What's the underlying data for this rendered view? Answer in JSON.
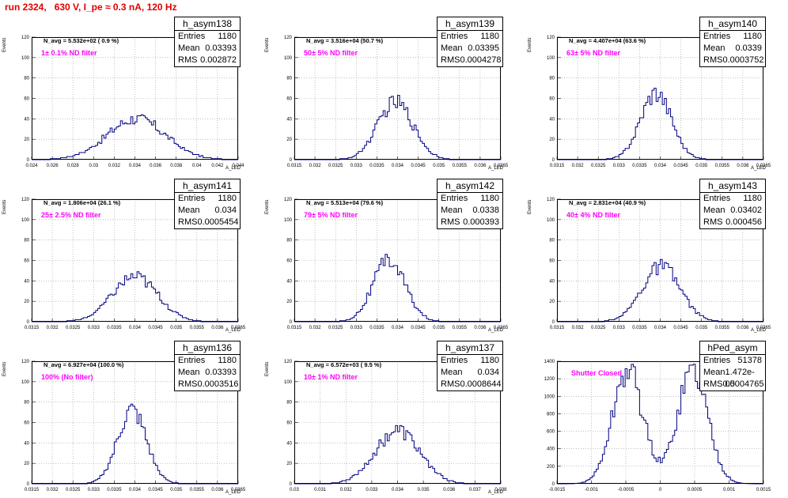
{
  "title": "run 2324,   630 V, I_pe ≈ 0.3 nA, 120 Hz",
  "stat_labels": {
    "entries": "Entries",
    "mean": "Mean",
    "rms": "RMS"
  },
  "chart_data": [
    {
      "type": "bar",
      "name": "h_asym138",
      "entries": "1180",
      "mean": "0.03393",
      "rms": "0.002872",
      "navg": "N_avg = 5.532e+02 ( 0.9 %)",
      "filter": "1± 0.1% ND filter",
      "ylabel": "Events",
      "xlabel": "A_LED",
      "xlim": [
        0.0235,
        0.044
      ],
      "ylim": [
        0,
        120
      ],
      "yticks": [
        "0",
        "20",
        "40",
        "60",
        "80",
        "100",
        "120"
      ],
      "xticks": [
        "0.024",
        "0.026",
        "0.028",
        "0.03",
        "0.032",
        "0.034",
        "0.036",
        "0.038",
        "0.04",
        "0.042",
        "0.044"
      ],
      "mu": 0.0339,
      "sigma": 0.0029,
      "peak": 40
    },
    {
      "type": "bar",
      "name": "h_asym139",
      "entries": "1180",
      "mean": "0.03395",
      "rms": "0.0004278",
      "navg": "N_avg = 3.516e+04 (50.7 %)",
      "filter": "50± 5% ND filter",
      "ylabel": "Events",
      "xlabel": "A_LED",
      "xlim": [
        0.0315,
        0.0365
      ],
      "ylim": [
        0,
        120
      ],
      "yticks": [
        "0",
        "20",
        "40",
        "60",
        "80",
        "100",
        "120"
      ],
      "xticks": [
        "0.0315",
        "0.032",
        "0.0325",
        "0.033",
        "0.0335",
        "0.034",
        "0.0345",
        "0.035",
        "0.0355",
        "0.036",
        "0.0365"
      ],
      "mu": 0.03395,
      "sigma": 0.00043,
      "peak": 56
    },
    {
      "type": "bar",
      "name": "h_asym140",
      "entries": "1180",
      "mean": "0.0339",
      "rms": "0.0003752",
      "navg": "N_avg = 4.407e+04 (63.6 %)",
      "filter": "63± 5% ND filter",
      "ylabel": "Events",
      "xlabel": "A_LED",
      "xlim": [
        0.0315,
        0.0365
      ],
      "ylim": [
        0,
        120
      ],
      "yticks": [
        "0",
        "20",
        "40",
        "60",
        "80",
        "100",
        "120"
      ],
      "xticks": [
        "0.0315",
        "0.032",
        "0.0325",
        "0.033",
        "0.0335",
        "0.034",
        "0.0345",
        "0.035",
        "0.0355",
        "0.036",
        "0.0365"
      ],
      "mu": 0.0339,
      "sigma": 0.000375,
      "peak": 66
    },
    {
      "type": "bar",
      "name": "h_asym141",
      "entries": "1180",
      "mean": "0.034",
      "rms": "0.0005454",
      "navg": "N_avg = 1.806e+04 (26.1 %)",
      "filter": "25± 2.5% ND filter",
      "ylabel": "Events",
      "xlabel": "A_LED",
      "xlim": [
        0.0315,
        0.0365
      ],
      "ylim": [
        0,
        120
      ],
      "yticks": [
        "0",
        "20",
        "40",
        "60",
        "80",
        "100",
        "120"
      ],
      "xticks": [
        "0.0315",
        "0.032",
        "0.0325",
        "0.033",
        "0.0335",
        "0.034",
        "0.0345",
        "0.035",
        "0.0355",
        "0.036",
        "0.0365"
      ],
      "mu": 0.034,
      "sigma": 0.00055,
      "peak": 44
    },
    {
      "type": "bar",
      "name": "h_asym142",
      "entries": "1180",
      "mean": "0.0338",
      "rms": "0.000393",
      "navg": "N_avg = 5.513e+04 (79.6 %)",
      "filter": "79± 5% ND filter",
      "ylabel": "Events",
      "xlabel": "A_LED",
      "xlim": [
        0.0315,
        0.0365
      ],
      "ylim": [
        0,
        120
      ],
      "yticks": [
        "0",
        "20",
        "40",
        "60",
        "80",
        "100",
        "120"
      ],
      "xticks": [
        "0.0315",
        "0.032",
        "0.0325",
        "0.033",
        "0.0335",
        "0.034",
        "0.0345",
        "0.035",
        "0.0355",
        "0.036",
        "0.0365"
      ],
      "mu": 0.0338,
      "sigma": 0.00039,
      "peak": 60
    },
    {
      "type": "bar",
      "name": "h_asym143",
      "entries": "1180",
      "mean": "0.03402",
      "rms": "0.000456",
      "navg": "N_avg = 2.831e+04 (40.9 %)",
      "filter": "40± 4% ND filter",
      "ylabel": "Events",
      "xlabel": "A_LED",
      "xlim": [
        0.0315,
        0.0365
      ],
      "ylim": [
        0,
        120
      ],
      "yticks": [
        "0",
        "20",
        "40",
        "60",
        "80",
        "100",
        "120"
      ],
      "xticks": [
        "0.0315",
        "0.032",
        "0.0325",
        "0.033",
        "0.0335",
        "0.034",
        "0.0345",
        "0.035",
        "0.0355",
        "0.036",
        "0.0365"
      ],
      "mu": 0.03402,
      "sigma": 0.00046,
      "peak": 54
    },
    {
      "type": "bar",
      "name": "h_asym136",
      "entries": "1180",
      "mean": "0.03393",
      "rms": "0.0003516",
      "navg": "N_avg = 6.927e+04 (100.0 %)",
      "filter": "100% (No filter)",
      "ylabel": "Events",
      "xlabel": "A_LED",
      "xlim": [
        0.0315,
        0.0365
      ],
      "ylim": [
        0,
        120
      ],
      "yticks": [
        "0",
        "20",
        "40",
        "60",
        "80",
        "100",
        "120"
      ],
      "xticks": [
        "0.0315",
        "0.032",
        "0.0325",
        "0.033",
        "0.0335",
        "0.034",
        "0.0345",
        "0.035",
        "0.0355",
        "0.036",
        "0.0365"
      ],
      "mu": 0.03393,
      "sigma": 0.00035,
      "peak": 72
    },
    {
      "type": "bar",
      "name": "h_asym137",
      "entries": "1180",
      "mean": "0.034",
      "rms": "0.0008644",
      "navg": "N_avg = 6.572e+03 ( 9.5 %)",
      "filter": "10± 1% ND filter",
      "ylabel": "Events",
      "xlabel": "A_LED",
      "xlim": [
        0.03,
        0.038
      ],
      "ylim": [
        0,
        120
      ],
      "yticks": [
        "0",
        "20",
        "40",
        "60",
        "80",
        "100",
        "120"
      ],
      "xticks": [
        "0.03",
        "0.031",
        "0.032",
        "0.033",
        "0.034",
        "0.035",
        "0.036",
        "0.037",
        "0.038"
      ],
      "mu": 0.034,
      "sigma": 0.00086,
      "peak": 52
    },
    {
      "type": "bar",
      "name": "hPed_asym",
      "entries": "51378",
      "mean": "1.472e-05",
      "rms": "0.0004765",
      "navg": "",
      "filter": "Shutter Closed",
      "ylabel": "",
      "xlabel": "",
      "xlim": [
        -0.0015,
        0.0015
      ],
      "ylim": [
        0,
        1400
      ],
      "yticks": [
        "0",
        "200",
        "400",
        "600",
        "800",
        "1000",
        "1200",
        "1400"
      ],
      "xticks": [
        "-0.0015",
        "-0.001",
        "-0.0005",
        "0",
        "0.0005",
        "0.001",
        "0.0015"
      ],
      "bimodal": true,
      "mu": 0.0,
      "sigma": 0.0004,
      "peak": 1300
    }
  ]
}
